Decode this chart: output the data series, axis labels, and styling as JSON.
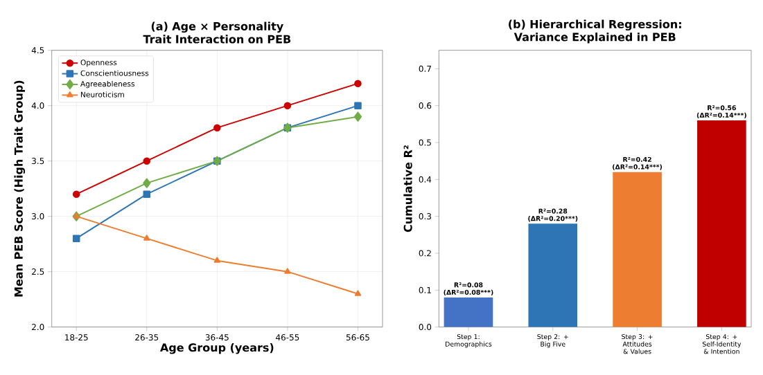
{
  "chart_data": [
    {
      "type": "line",
      "title": "(a) Age × Personality Trait Interaction on PEB",
      "xlabel": "Age Group (years)",
      "ylabel": "Mean PEB Score (High Trait Group)",
      "categories": [
        "18-25",
        "26-35",
        "36-45",
        "46-55",
        "56-65"
      ],
      "series": [
        {
          "name": "Openness",
          "color": "#cc0000",
          "marker": "circle",
          "values": [
            3.2,
            3.5,
            3.8,
            4.0,
            4.2
          ]
        },
        {
          "name": "Conscientiousness",
          "color": "#2e75b6",
          "marker": "square",
          "values": [
            2.8,
            3.2,
            3.5,
            3.8,
            4.0
          ]
        },
        {
          "name": "Agreeableness",
          "color": "#70ad47",
          "marker": "diamond",
          "values": [
            3.0,
            3.3,
            3.5,
            3.8,
            3.9
          ]
        },
        {
          "name": "Neuroticism",
          "color": "#ed7d31",
          "marker": "triangle",
          "values": [
            3.0,
            2.8,
            2.6,
            2.5,
            2.3
          ]
        }
      ],
      "ylim": [
        2,
        4.5
      ],
      "yticks": [
        {
          "value": 2,
          "label": "2.0"
        },
        2.5,
        {
          "value": 3,
          "label": "3.0"
        },
        3.5,
        {
          "value": 4,
          "label": "4.0"
        },
        4.5
      ],
      "grid": true,
      "legend": "top left"
    },
    {
      "type": "bar",
      "title": "(b) Hierarchical Regression: Variance Explained in PEB",
      "ylabel": "Cumulative R²",
      "categories": [
        "Step 1: Demographics",
        "Step 2: + Big Five",
        "Step 3: + Attitudes & Values",
        "Step 4: + Self-Identity & Intention"
      ],
      "values": [
        0.08,
        0.28,
        0.42,
        0.56
      ],
      "colors": [
        "#4472c4",
        "#2e75b6",
        "#ed7d31",
        "#c00000"
      ],
      "value_labels": [
        "R²=0.08 (ΔR²=0.08***)",
        "R²=0.28 (ΔR²=0.20***)",
        "R²=0.42 (ΔR²=0.14***)",
        "R²=0.56 (ΔR²=0.14***)"
      ],
      "ylim": [
        0,
        0.75
      ],
      "yticks": [
        {
          "value": 0,
          "label": "0.0"
        },
        0.1,
        0.2,
        0.3,
        0.4,
        0.5,
        0.6,
        0.7
      ]
    }
  ]
}
